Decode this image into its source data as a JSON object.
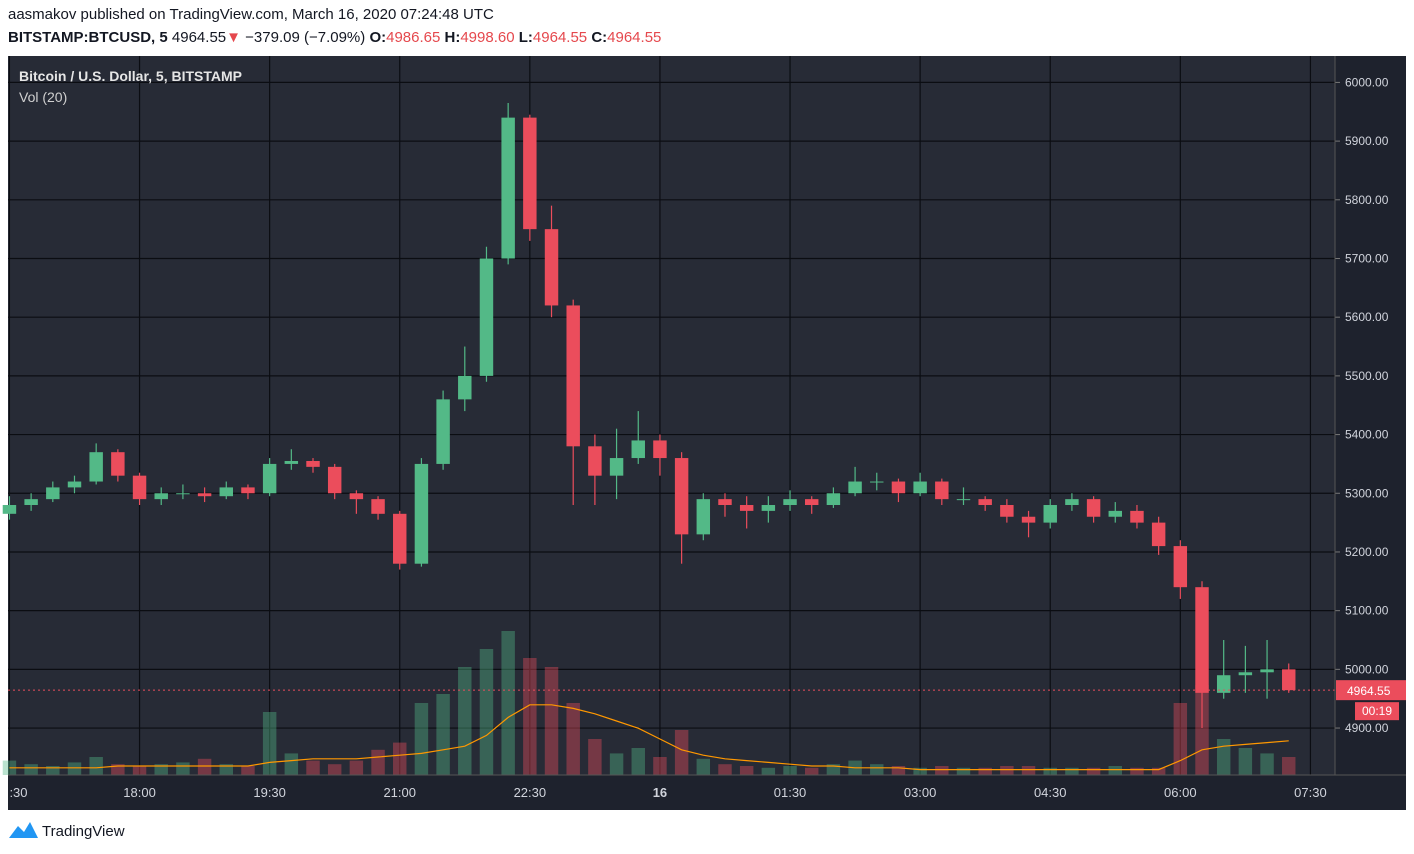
{
  "header": {
    "published": "aasmakov published on TradingView.com, March 16, 2020 07:24:48 UTC",
    "symbol": "BITSTAMP:BTCUSD, 5",
    "last": "4964.55",
    "arrow": "▼",
    "change": "−379.09 (−7.09%)",
    "o_label": "O:",
    "o": "4986.65",
    "h_label": "H:",
    "h": "4998.60",
    "l_label": "L:",
    "l": "4964.55",
    "c_label": "C:",
    "c": "4964.55"
  },
  "footer": {
    "brand": "TradingView"
  },
  "chart_data": {
    "type": "candlestick",
    "title": "Bitcoin / U.S. Dollar, 5, BITSTAMP",
    "volume_title": "Vol (20)",
    "x": [
      "16:30",
      "16:45",
      "17:00",
      "17:15",
      "17:30",
      "17:45",
      "18:00",
      "18:15",
      "18:30",
      "18:45",
      "19:00",
      "19:15",
      "19:30",
      "19:45",
      "20:00",
      "20:15",
      "20:30",
      "20:45",
      "21:00",
      "21:15",
      "21:30",
      "21:45",
      "22:00",
      "22:15",
      "22:30",
      "22:45",
      "23:00",
      "23:15",
      "23:30",
      "23:45",
      "00:00",
      "00:15",
      "00:30",
      "00:45",
      "01:00",
      "01:15",
      "01:30",
      "01:45",
      "02:00",
      "02:15",
      "02:30",
      "02:45",
      "03:00",
      "03:15",
      "03:30",
      "03:45",
      "04:00",
      "04:15",
      "04:30",
      "04:45",
      "05:00",
      "05:15",
      "05:30",
      "05:45",
      "06:00",
      "06:15",
      "06:30",
      "06:45",
      "07:00",
      "07:15"
    ],
    "open": [
      5265,
      5280,
      5290,
      5310,
      5320,
      5370,
      5330,
      5290,
      5300,
      5300,
      5295,
      5310,
      5300,
      5350,
      5355,
      5345,
      5300,
      5290,
      5265,
      5180,
      5350,
      5460,
      5500,
      5700,
      5940,
      5750,
      5620,
      5380,
      5330,
      5360,
      5390,
      5360,
      5230,
      5290,
      5280,
      5270,
      5280,
      5290,
      5280,
      5300,
      5320,
      5320,
      5300,
      5320,
      5290,
      5290,
      5280,
      5260,
      5250,
      5280,
      5290,
      5260,
      5270,
      5250,
      5210,
      5140,
      4960,
      4990,
      4995,
      5000
    ],
    "high": [
      5295,
      5300,
      5320,
      5330,
      5385,
      5375,
      5335,
      5310,
      5315,
      5310,
      5320,
      5315,
      5360,
      5375,
      5360,
      5350,
      5305,
      5295,
      5270,
      5360,
      5475,
      5550,
      5720,
      5965,
      5945,
      5790,
      5630,
      5400,
      5410,
      5440,
      5400,
      5370,
      5300,
      5300,
      5295,
      5295,
      5305,
      5295,
      5310,
      5345,
      5335,
      5325,
      5335,
      5325,
      5310,
      5295,
      5290,
      5270,
      5290,
      5300,
      5295,
      5285,
      5280,
      5260,
      5220,
      5150,
      5050,
      5040,
      5050,
      5010
    ],
    "low": [
      5255,
      5270,
      5285,
      5300,
      5315,
      5320,
      5280,
      5280,
      5290,
      5285,
      5290,
      5290,
      5295,
      5340,
      5335,
      5290,
      5265,
      5255,
      5170,
      5175,
      5340,
      5440,
      5490,
      5690,
      5730,
      5600,
      5280,
      5280,
      5290,
      5350,
      5330,
      5180,
      5220,
      5260,
      5240,
      5250,
      5270,
      5265,
      5275,
      5295,
      5305,
      5285,
      5295,
      5280,
      5280,
      5270,
      5250,
      5225,
      5240,
      5270,
      5250,
      5250,
      5240,
      5195,
      5120,
      4900,
      4950,
      4960,
      4950,
      4960
    ],
    "close": [
      5280,
      5290,
      5310,
      5320,
      5370,
      5330,
      5290,
      5300,
      5300,
      5295,
      5310,
      5300,
      5350,
      5355,
      5345,
      5300,
      5290,
      5265,
      5180,
      5350,
      5460,
      5500,
      5700,
      5940,
      5750,
      5620,
      5380,
      5330,
      5360,
      5390,
      5360,
      5230,
      5290,
      5280,
      5270,
      5280,
      5290,
      5280,
      5300,
      5320,
      5320,
      5300,
      5320,
      5290,
      5290,
      5280,
      5260,
      5250,
      5280,
      5290,
      5260,
      5270,
      5250,
      5210,
      5140,
      4960,
      4990,
      4995,
      5000,
      4964.55
    ],
    "volume": [
      8,
      6,
      5,
      7,
      10,
      6,
      5,
      6,
      7,
      9,
      6,
      5,
      35,
      12,
      8,
      6,
      8,
      14,
      18,
      40,
      45,
      60,
      70,
      80,
      65,
      60,
      40,
      20,
      12,
      15,
      10,
      25,
      9,
      6,
      5,
      4,
      5,
      4,
      6,
      8,
      6,
      5,
      4,
      5,
      4,
      4,
      5,
      5,
      4,
      4,
      4,
      5,
      4,
      4,
      40,
      50,
      20,
      15,
      12,
      10
    ],
    "volume_ma": [
      4,
      4,
      4,
      4,
      4,
      5,
      5,
      5,
      5,
      5,
      5,
      5,
      7,
      8,
      9,
      9,
      9,
      10,
      11,
      12,
      14,
      16,
      22,
      32,
      39,
      39,
      37,
      34,
      30,
      26,
      20,
      14,
      11,
      9,
      8,
      7,
      6,
      5,
      5,
      4,
      4,
      4,
      3,
      3,
      3,
      3,
      3,
      3,
      3,
      3,
      3,
      3,
      3,
      3,
      8,
      14,
      16,
      17,
      18,
      19
    ],
    "up_color": "#53b987",
    "down_color": "#eb4d5c",
    "ma_color": "#ff9800",
    "xlim": [
      "16:29",
      "07:47"
    ],
    "xticks": [
      {
        "value": "16:30",
        "label": ":30"
      },
      "18:00",
      "19:30",
      "21:00",
      "22:30",
      {
        "value": "00:00",
        "label": "16"
      },
      "01:30",
      "03:00",
      "04:30",
      "06:00",
      "07:30"
    ],
    "ylim": [
      4820,
      6045
    ],
    "yticks": [
      {
        "value": 4900,
        "label": "4900.00"
      },
      {
        "value": 5000,
        "label": "5000.00"
      },
      {
        "value": 5100,
        "label": "5100.00"
      },
      {
        "value": 5200,
        "label": "5200.00"
      },
      {
        "value": 5300,
        "label": "5300.00"
      },
      {
        "value": 5400,
        "label": "5400.00"
      },
      {
        "value": 5500,
        "label": "5500.00"
      },
      {
        "value": 5600,
        "label": "5600.00"
      },
      {
        "value": 5700,
        "label": "5700.00"
      },
      {
        "value": 5800,
        "label": "5800.00"
      },
      {
        "value": 5900,
        "label": "5900.00"
      },
      {
        "value": 6000,
        "label": "6000.00"
      }
    ],
    "y2lim": [
      0,
      100
    ],
    "last_price": {
      "value": 4964.55,
      "label": "4964.55"
    },
    "countdown": "00:19",
    "grid": true
  }
}
